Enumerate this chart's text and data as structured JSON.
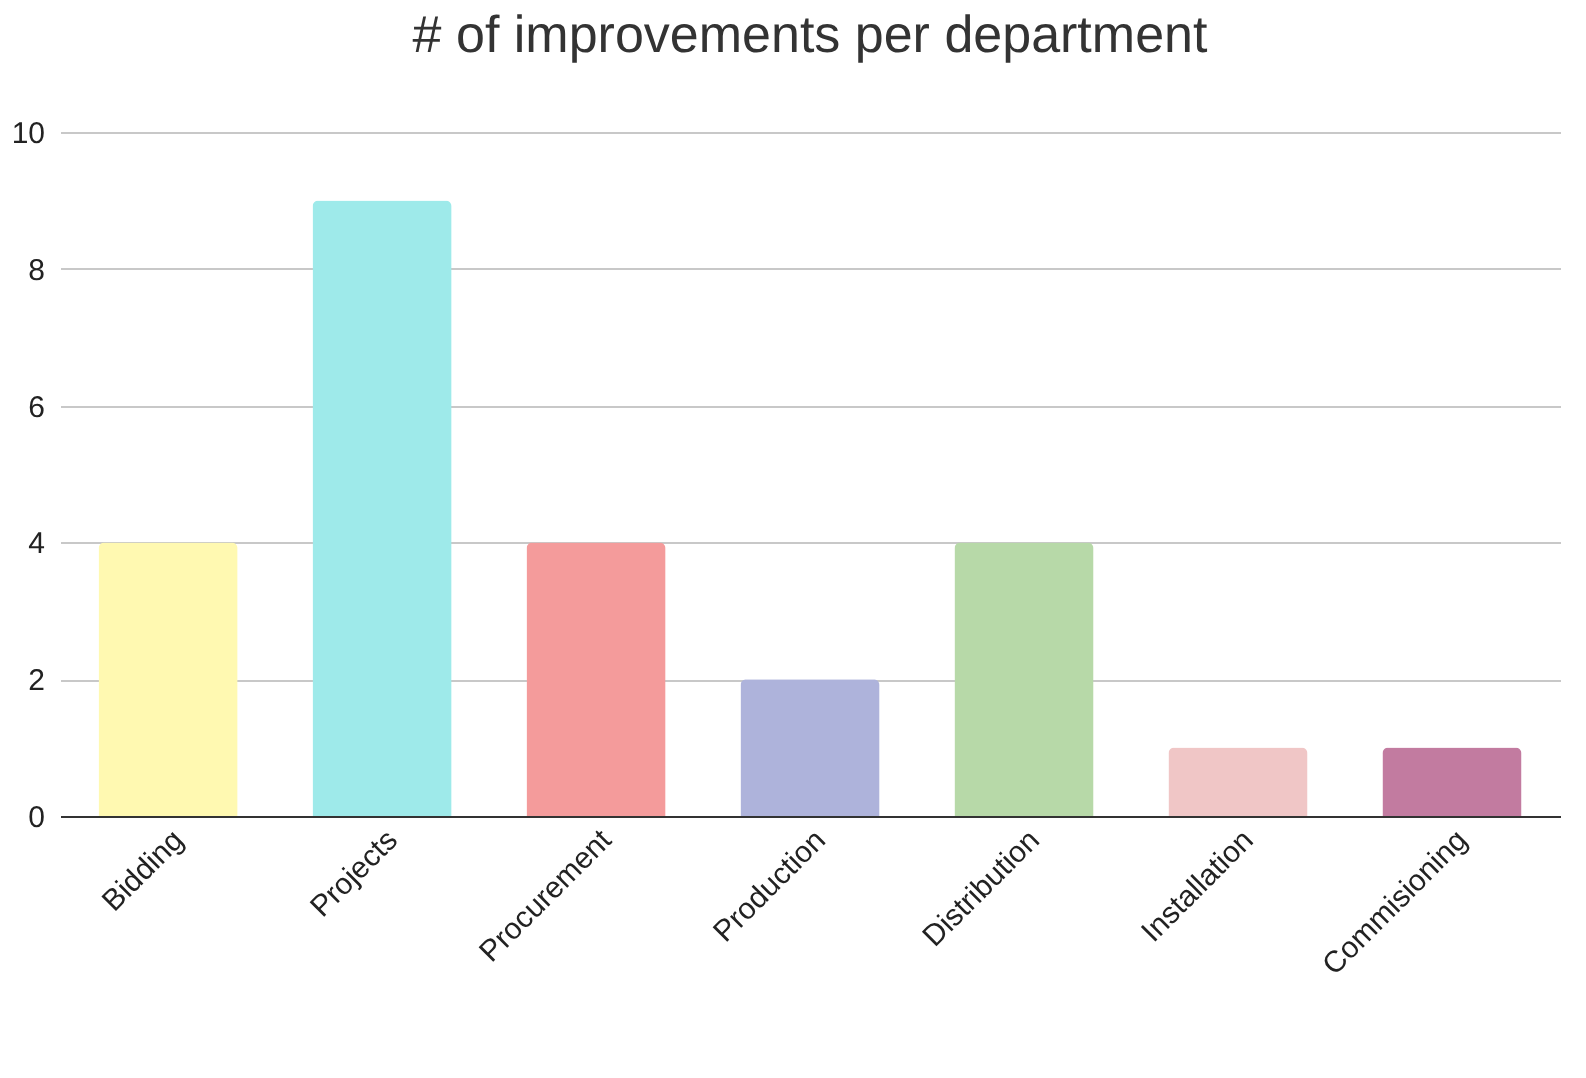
{
  "chart_data": {
    "type": "bar",
    "title": "# of improvements per department",
    "categories": [
      "Bidding",
      "Projects",
      "Procurement",
      "Production",
      "Distribution",
      "Installation",
      "Commisioning"
    ],
    "values": [
      4,
      9,
      4,
      2,
      4,
      1,
      1
    ],
    "colors": [
      "#fff9b1",
      "#9eeaea",
      "#f49b9b",
      "#aeb3db",
      "#b7d9a8",
      "#f0c6c6",
      "#c27ba0"
    ],
    "ylim": [
      0,
      10
    ],
    "yticks": [
      0,
      2,
      4,
      6,
      8,
      10
    ],
    "grid": "y",
    "legend": false
  }
}
